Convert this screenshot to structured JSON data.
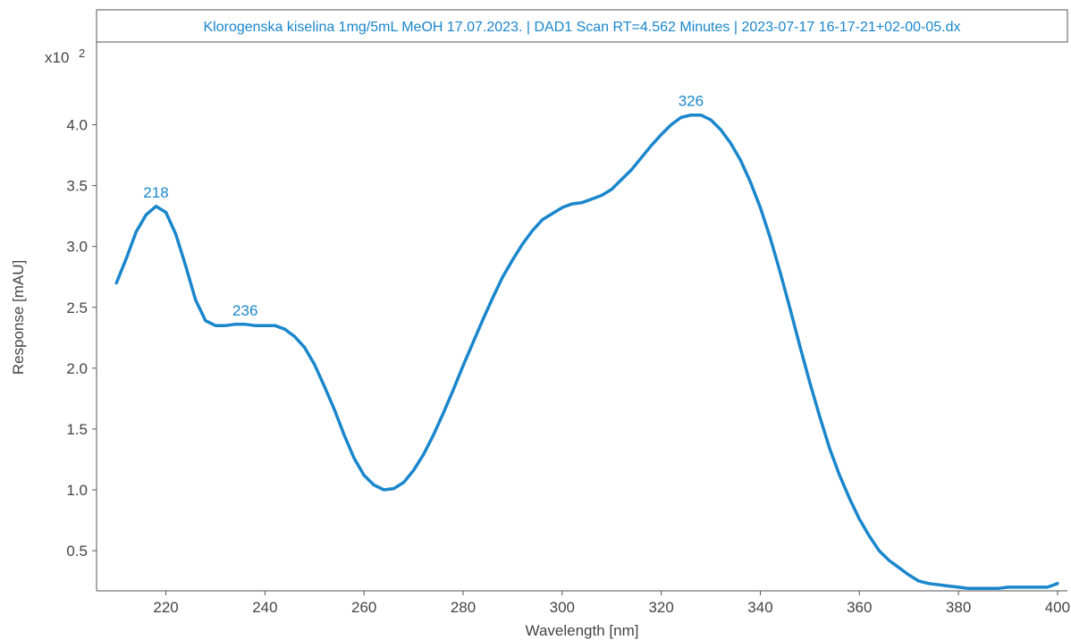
{
  "colors": {
    "series": "#1a86cc",
    "title": "#1a86cc",
    "axis": "#555555",
    "text": "#444444",
    "frame": "#555555"
  },
  "chart_data": {
    "type": "line",
    "title": "Klorogenska kiselina 1mg/5mL MeOH 17.07.2023.  | DAD1 Scan RT=4.562 Minutes | 2023-07-17 16-17-21+02-00-05.dx",
    "xlabel": "Wavelength [nm]",
    "ylabel": "Response [mAU]",
    "y_multiplier": "x10",
    "y_multiplier_exp": "2",
    "xlim": [
      206,
      402
    ],
    "ylim": [
      0.17,
      4.68
    ],
    "xticks": [
      220,
      240,
      260,
      280,
      300,
      320,
      340,
      360,
      380,
      400
    ],
    "xtick_labels": [
      "220",
      "240",
      "260",
      "280",
      "300",
      "320",
      "340",
      "360",
      "380",
      "400"
    ],
    "yticks": [
      0.5,
      1.0,
      1.5,
      2.0,
      2.5,
      3.0,
      3.5,
      4.0
    ],
    "ytick_labels": [
      "0.5",
      "1.0",
      "1.5",
      "2.0",
      "2.5",
      "3.0",
      "3.5",
      "4.0"
    ],
    "grid": false,
    "legend": "none",
    "series": [
      {
        "x": [
          210,
          212,
          214,
          216,
          218,
          220,
          222,
          224,
          226,
          228,
          230,
          232,
          234,
          236,
          238,
          240,
          242,
          244,
          246,
          248,
          250,
          252,
          254,
          256,
          258,
          260,
          262,
          264,
          266,
          268,
          270,
          272,
          274,
          276,
          278,
          280,
          282,
          284,
          286,
          288,
          290,
          292,
          294,
          296,
          298,
          300,
          302,
          304,
          306,
          308,
          310,
          312,
          314,
          316,
          318,
          320,
          322,
          324,
          326,
          328,
          330,
          332,
          334,
          336,
          338,
          340,
          342,
          344,
          346,
          348,
          350,
          352,
          354,
          356,
          358,
          360,
          362,
          364,
          366,
          368,
          370,
          372,
          374,
          376,
          378,
          380,
          382,
          384,
          386,
          388,
          390,
          392,
          394,
          396,
          398,
          400
        ],
        "values": [
          2.7,
          2.9,
          3.12,
          3.26,
          3.33,
          3.28,
          3.1,
          2.84,
          2.56,
          2.39,
          2.35,
          2.35,
          2.36,
          2.36,
          2.35,
          2.35,
          2.35,
          2.32,
          2.26,
          2.17,
          2.03,
          1.85,
          1.66,
          1.45,
          1.26,
          1.12,
          1.04,
          1.0,
          1.01,
          1.06,
          1.16,
          1.29,
          1.45,
          1.63,
          1.82,
          2.02,
          2.21,
          2.4,
          2.58,
          2.75,
          2.89,
          3.02,
          3.13,
          3.22,
          3.27,
          3.32,
          3.35,
          3.36,
          3.39,
          3.42,
          3.47,
          3.55,
          3.63,
          3.73,
          3.83,
          3.92,
          4.0,
          4.06,
          4.08,
          4.08,
          4.04,
          3.96,
          3.85,
          3.71,
          3.53,
          3.32,
          3.07,
          2.79,
          2.49,
          2.18,
          1.88,
          1.6,
          1.34,
          1.12,
          0.93,
          0.76,
          0.62,
          0.5,
          0.42,
          0.36,
          0.3,
          0.25,
          0.23,
          0.22,
          0.21,
          0.2,
          0.19,
          0.19,
          0.19,
          0.19,
          0.2,
          0.2,
          0.2,
          0.2,
          0.2,
          0.23
        ]
      }
    ],
    "peak_labels": [
      {
        "text": "218",
        "x": 218,
        "y": 3.33
      },
      {
        "text": "236",
        "x": 236,
        "y": 2.36
      },
      {
        "text": "326",
        "x": 326,
        "y": 4.08
      }
    ]
  }
}
